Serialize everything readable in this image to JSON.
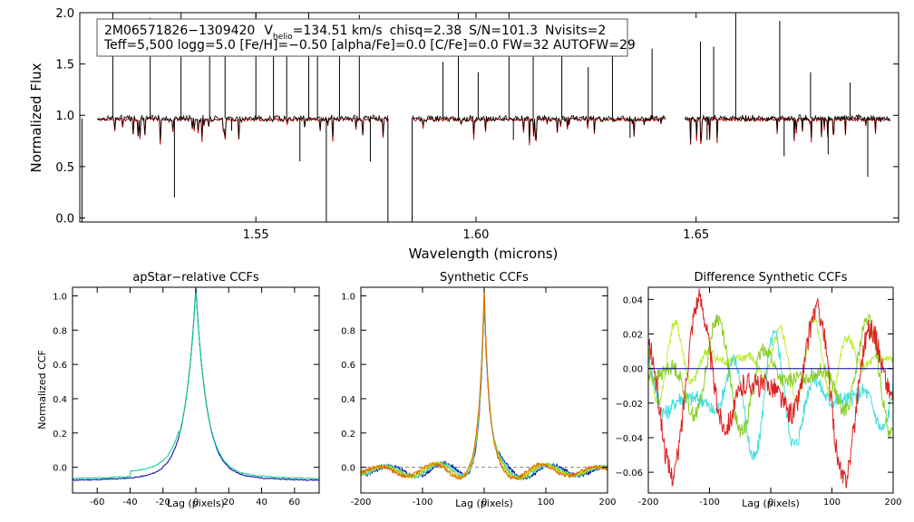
{
  "annotation": {
    "id": "2M06571826−1309420",
    "vhelio_prefix": "V",
    "vhelio_sub": "helio",
    "vhelio_value": "=134.51 km/s",
    "chisq": "chisq=2.38",
    "snr": "S/N=101.3",
    "nvisits": "Nvisits=2",
    "params": "Teff=5,500 logg=5.0 [Fe/H]=−0.50 [alpha/Fe]=0.0 [C/Fe]=0.0 FW=32 AUTOFW=29"
  },
  "colors": {
    "observed": "#000000",
    "model": "#cc0000",
    "ccf_series": [
      "#0000aa",
      "#00cc88",
      "#44dddd",
      "#cccc00",
      "#dd2222"
    ],
    "diff_series": [
      "#bbee33",
      "#44dddd",
      "#88cc22",
      "#dd2222",
      "#0000aa"
    ]
  },
  "chart_data": [
    {
      "type": "line",
      "title": "",
      "xlabel": "Wavelength (microns)",
      "ylabel": "Normalized Flux",
      "xlim": [
        1.51,
        1.696
      ],
      "ylim": [
        -0.04,
        2.0
      ],
      "xticks": [
        "1.55",
        "1.60",
        "1.65"
      ],
      "yticks": [
        "0.0",
        "0.5",
        "1.0",
        "1.5",
        "2.0"
      ],
      "chips": [
        [
          1.514,
          1.58
        ],
        [
          1.5855,
          1.643
        ],
        [
          1.6475,
          1.694
        ]
      ],
      "emission_lines": [
        [
          1.5175,
          2.0
        ],
        [
          1.526,
          1.95
        ],
        [
          1.533,
          2.0
        ],
        [
          1.5395,
          1.72
        ],
        [
          1.543,
          1.8
        ],
        [
          1.55,
          2.0
        ],
        [
          1.554,
          1.92
        ],
        [
          1.557,
          1.65
        ],
        [
          1.562,
          2.0
        ],
        [
          1.564,
          1.62
        ],
        [
          1.569,
          1.75
        ],
        [
          1.5735,
          1.98
        ],
        [
          1.5925,
          1.52
        ],
        [
          1.596,
          2.0
        ],
        [
          1.6005,
          1.42
        ],
        [
          1.6075,
          2.0
        ],
        [
          1.613,
          1.62
        ],
        [
          1.6195,
          1.58
        ],
        [
          1.6255,
          1.47
        ],
        [
          1.631,
          1.82
        ],
        [
          1.64,
          1.65
        ],
        [
          1.651,
          1.72
        ],
        [
          1.654,
          1.67
        ],
        [
          1.659,
          2.0
        ],
        [
          1.669,
          1.92
        ],
        [
          1.676,
          1.42
        ],
        [
          1.685,
          1.32
        ]
      ],
      "absorption_lines": [
        [
          1.5105,
          -0.04
        ],
        [
          1.5315,
          0.2
        ],
        [
          1.5445,
          0.85
        ],
        [
          1.56,
          0.55
        ],
        [
          1.566,
          -0.04
        ],
        [
          1.576,
          0.55
        ],
        [
          1.58,
          -0.04
        ],
        [
          1.5855,
          -0.04
        ],
        [
          1.6085,
          0.76
        ],
        [
          1.635,
          0.78
        ],
        [
          1.6525,
          0.76
        ],
        [
          1.67,
          0.6
        ],
        [
          1.68,
          0.62
        ],
        [
          1.689,
          0.4
        ]
      ],
      "series": [
        {
          "name": "",
          "color_key": "observed",
          "level": 0.97
        },
        {
          "name": "",
          "color_key": "model",
          "level": 0.96
        }
      ]
    },
    {
      "type": "line",
      "title": "apStar−relative CCFs",
      "xlabel": "Lag (pixels)",
      "ylabel": "Normalized CCF",
      "xlim": [
        -75,
        75
      ],
      "ylim": [
        -0.15,
        1.05
      ],
      "xticks": [
        -60,
        -40,
        -20,
        0,
        20,
        40,
        60
      ],
      "yticks": [
        "0.0",
        "0.2",
        "0.4",
        "0.6",
        "0.8",
        "1.0"
      ],
      "series": [
        {
          "name": "",
          "peak": 0.99,
          "floor": -0.08
        },
        {
          "name": "",
          "peak": 0.98,
          "floor": -0.07
        }
      ]
    },
    {
      "type": "line",
      "title": "Synthetic CCFs",
      "xlabel": "Lag (pixels)",
      "ylabel": "",
      "xlim": [
        -200,
        200
      ],
      "ylim": [
        -0.15,
        1.05
      ],
      "xticks": [
        -200,
        -100,
        0,
        100,
        200
      ],
      "yticks": [
        "0.0",
        "0.2",
        "0.4",
        "0.6",
        "0.8",
        "1.0"
      ],
      "series": [
        {
          "name": "",
          "peak": 1.0
        },
        {
          "name": "",
          "peak": 1.0
        },
        {
          "name": "",
          "peak": 1.0
        },
        {
          "name": "",
          "peak": 1.0
        },
        {
          "name": "",
          "peak": 1.0
        }
      ]
    },
    {
      "type": "line",
      "title": "Difference Synthetic CCFs",
      "xlabel": "Lag (pixels)",
      "ylabel": "",
      "xlim": [
        -200,
        200
      ],
      "ylim": [
        -0.072,
        0.047
      ],
      "xticks": [
        -200,
        -100,
        0,
        100,
        200
      ],
      "yticks": [
        "−0.06",
        "−0.04",
        "−0.02",
        "0.00",
        "0.02",
        "0.04"
      ],
      "series": [
        {
          "name": "",
          "range": [
            -0.02,
            0.03
          ]
        },
        {
          "name": "",
          "range": [
            -0.055,
            0.02
          ]
        },
        {
          "name": "",
          "range": [
            -0.04,
            0.03
          ]
        },
        {
          "name": "",
          "range": [
            -0.065,
            0.045
          ]
        },
        {
          "name": "",
          "range": [
            0.0,
            0.0
          ]
        }
      ]
    }
  ]
}
